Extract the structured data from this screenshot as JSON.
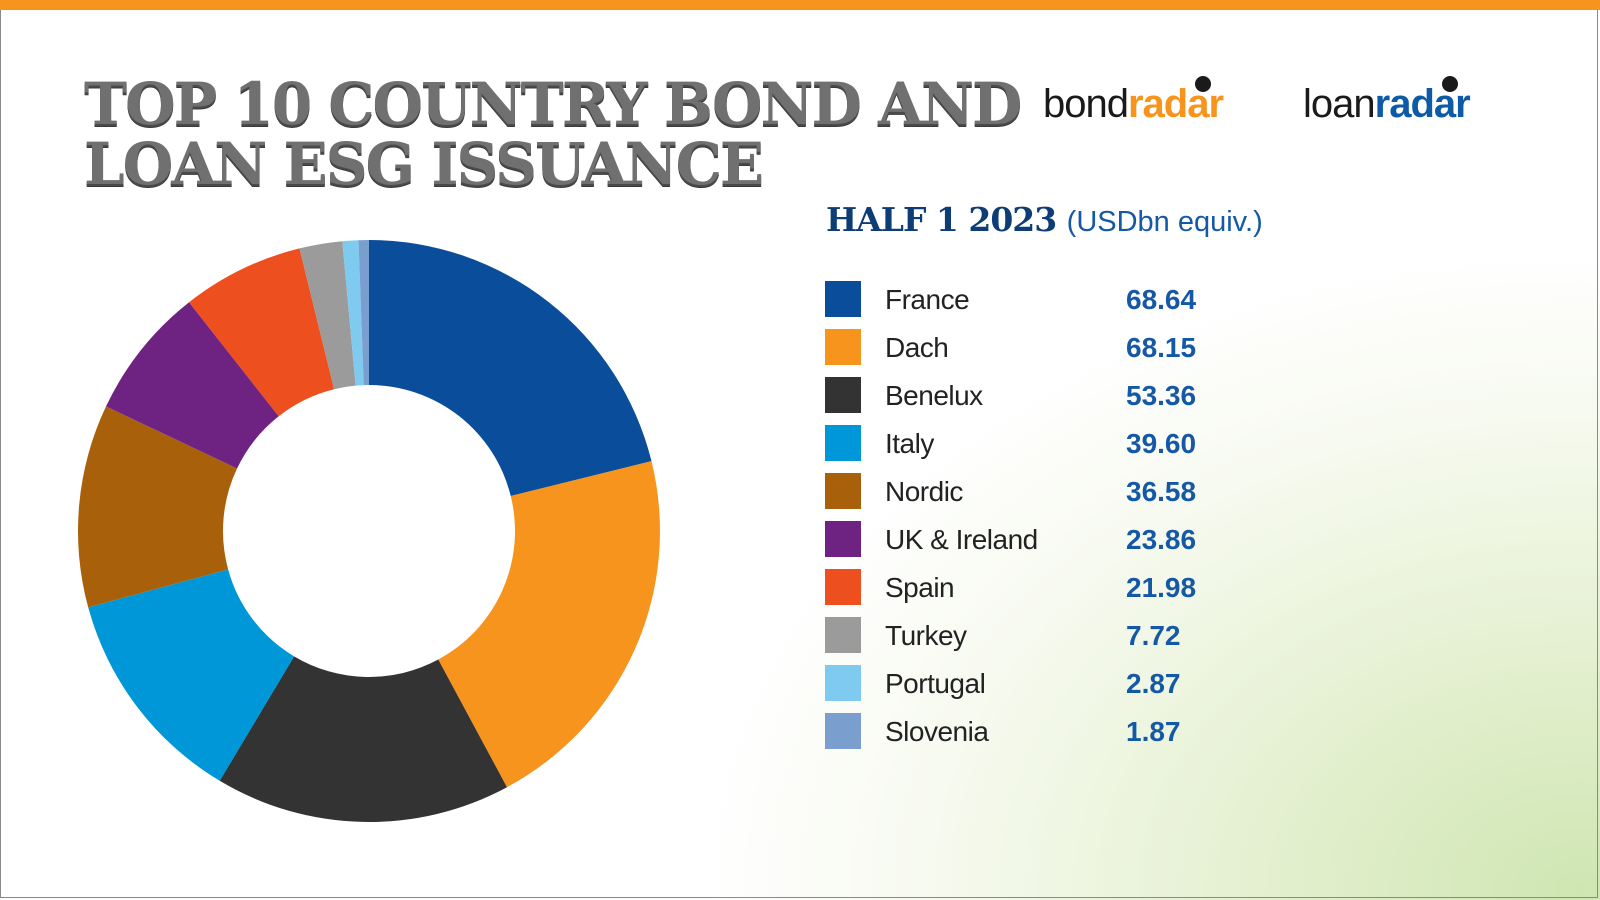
{
  "header": {
    "title_line1": "TOP 10 COUNTRY BOND AND",
    "title_line2": "LOAN ESG ISSUANCE",
    "accent_color": "#f7941d"
  },
  "logos": {
    "bond": {
      "part1": "bond",
      "part2": "radar",
      "color": "#f7941d"
    },
    "loan": {
      "part1": "loan",
      "part2": "radar",
      "color": "#0d5aa7"
    }
  },
  "subtitle": {
    "period": "HALF 1 2023",
    "unit": "(USDbn equiv.)"
  },
  "chart_data": {
    "type": "pie",
    "variant": "donut",
    "categories": [
      "France",
      "Dach",
      "Benelux",
      "Italy",
      "Nordic",
      "UK & Ireland",
      "Spain",
      "Turkey",
      "Portugal",
      "Slovenia"
    ],
    "values": [
      68.64,
      68.15,
      53.36,
      39.6,
      36.58,
      23.86,
      21.98,
      7.72,
      2.87,
      1.87
    ],
    "value_labels": [
      "68.64",
      "68.15",
      "53.36",
      "39.60",
      "36.58",
      "23.86",
      "21.98",
      "7.72",
      "2.87",
      "1.87"
    ],
    "colors": [
      "#0a4e9b",
      "#f7941d",
      "#333333",
      "#0097d9",
      "#a8610a",
      "#6e2383",
      "#ee4f1e",
      "#9b9b9b",
      "#7fcbef",
      "#7a9fcf"
    ],
    "legend_placement": "right",
    "start": "top, clockwise"
  }
}
